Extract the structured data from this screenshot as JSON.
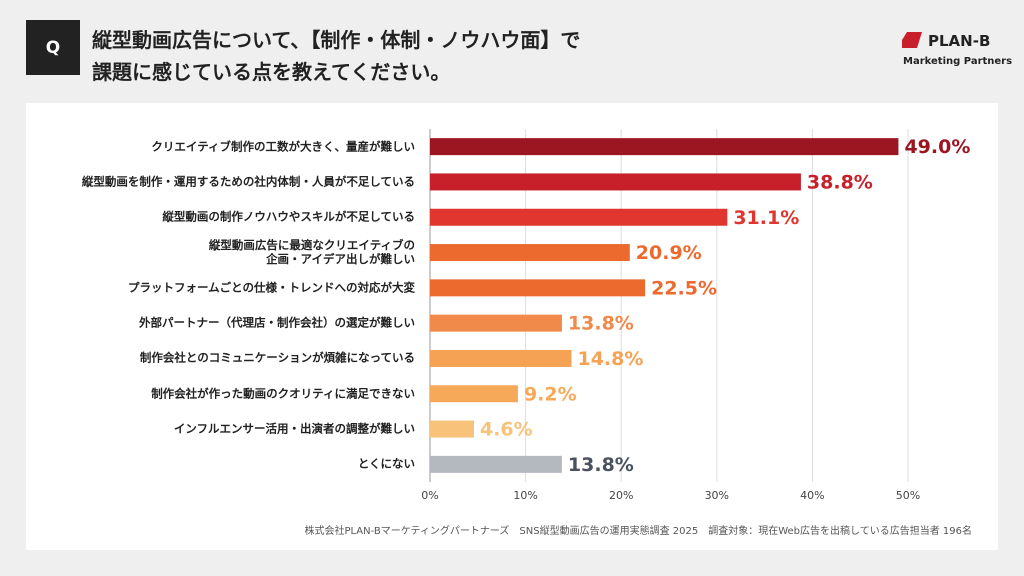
{
  "header": {
    "badge": "Q",
    "title_lines": [
      "縦型動画広告について、【制作・体制・ノウハウ面】で",
      "課題に感じている点を教えてください。"
    ]
  },
  "logo": {
    "name": "PLAN-B",
    "tagline": "Marketing Partners"
  },
  "footer": "株式会社PLAN-Bマーケティングパートナーズ　SNS縦型動画広告の運用実態調査 2025　調査対象：現在Web広告を出稿している広告担当者 196名",
  "chart_data": {
    "type": "hbar",
    "categories": [
      "クリエイティブ制作の工数が大きく、量産が難しい",
      "縦型動画を制作・運用するための社内体制・人員が不足している",
      "縦型動画の制作ノウハウやスキルが不足している",
      "縦型動画広告に最適なクリエイティブの\n企画・アイデア出しが難しい",
      "プラットフォームごとの仕様・トレンドへの対応が大変",
      "外部パートナー（代理店・制作会社）の選定が難しい",
      "制作会社とのコミュニケーションが煩雑になっている",
      "制作会社が作った動画のクオリティに満足できない",
      "インフルエンサー活用・出演者の調整が難しい",
      "とくにない"
    ],
    "values": [
      49.0,
      38.8,
      31.1,
      20.9,
      22.5,
      13.8,
      14.8,
      9.2,
      4.6,
      13.8
    ],
    "value_labels": [
      "49.0%",
      "38.8%",
      "31.1%",
      "20.9%",
      "22.5%",
      "13.8%",
      "14.8%",
      "9.2%",
      "4.6%",
      "13.8%"
    ],
    "colors": [
      "#9b1620",
      "#c8202a",
      "#e0362f",
      "#ec6a2e",
      "#ec6a2e",
      "#f08a4a",
      "#f5a255",
      "#f7a95a",
      "#f8c27a",
      "#b4b8bf"
    ],
    "label_colors": [
      "#9b1620",
      "#c8202a",
      "#e0362f",
      "#ec6a2e",
      "#ec6a2e",
      "#f08a4a",
      "#f5a255",
      "#f7a95a",
      "#f8c27a",
      "#4a5260"
    ],
    "xlim": [
      0,
      50
    ],
    "xticks": [
      {
        "value": 0,
        "label": "0%"
      },
      {
        "value": 10,
        "label": "10%"
      },
      {
        "value": 20,
        "label": "20%"
      },
      {
        "value": 30,
        "label": "30%"
      },
      {
        "value": 40,
        "label": "40%"
      },
      {
        "value": 50,
        "label": "50%"
      }
    ],
    "grid": true
  }
}
